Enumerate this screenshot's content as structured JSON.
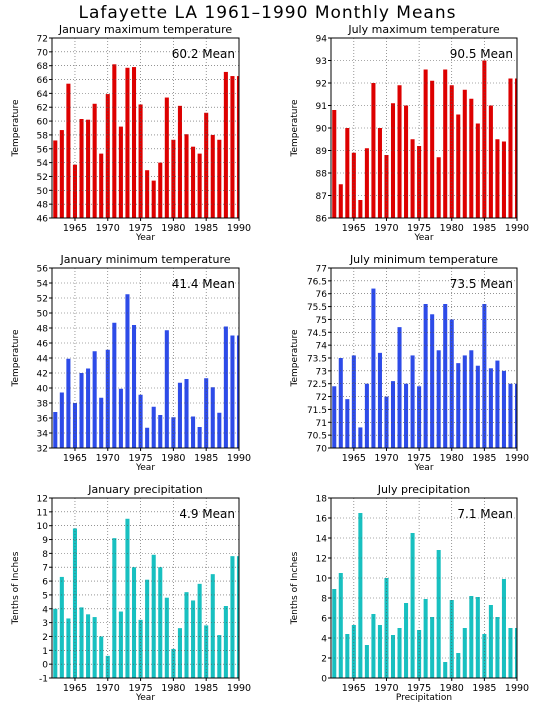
{
  "page": {
    "title": "Lafayette LA   1961–1990 Monthly Means"
  },
  "chart_data": [
    {
      "type": "bar",
      "title": "January maximum temperature",
      "mean_label": "60.2  Mean",
      "xlabel": "Year",
      "ylabel": "Temperature",
      "ylim": [
        46,
        72
      ],
      "ytick_step": 2,
      "xlim": [
        1961.5,
        1990
      ],
      "xticks": [
        1965,
        1970,
        1975,
        1980,
        1985,
        1990
      ],
      "grid": true,
      "color": "#dd0000",
      "x": [
        1962,
        1963,
        1964,
        1965,
        1966,
        1967,
        1968,
        1969,
        1970,
        1971,
        1972,
        1973,
        1974,
        1975,
        1976,
        1977,
        1978,
        1979,
        1980,
        1981,
        1982,
        1983,
        1984,
        1985,
        1986,
        1987,
        1988,
        1989,
        1990
      ],
      "values": [
        57.2,
        58.7,
        65.4,
        53.7,
        60.3,
        60.2,
        62.5,
        55.3,
        63.9,
        68.2,
        59.2,
        67.7,
        67.8,
        62.4,
        52.9,
        51.4,
        54.0,
        63.4,
        57.3,
        62.2,
        58.1,
        56.3,
        55.3,
        61.2,
        58.0,
        57.3,
        67.1,
        66.5,
        66.5
      ]
    },
    {
      "type": "bar",
      "title": "July maximum temperature",
      "mean_label": "90.5  Mean",
      "xlabel": "Year",
      "ylabel": "Temperature",
      "ylim": [
        86,
        94
      ],
      "ytick_step": 1,
      "xlim": [
        1961.5,
        1990
      ],
      "xticks": [
        1965,
        1970,
        1975,
        1980,
        1985,
        1990
      ],
      "grid": true,
      "color": "#dd0000",
      "x": [
        1962,
        1963,
        1964,
        1965,
        1966,
        1967,
        1968,
        1969,
        1970,
        1971,
        1972,
        1973,
        1974,
        1975,
        1976,
        1977,
        1978,
        1979,
        1980,
        1981,
        1982,
        1983,
        1984,
        1985,
        1986,
        1987,
        1988,
        1989,
        1990
      ],
      "values": [
        90.8,
        87.5,
        90.0,
        88.9,
        86.8,
        89.1,
        92.0,
        90.0,
        88.8,
        91.1,
        91.9,
        91.0,
        89.5,
        89.2,
        92.6,
        92.1,
        88.7,
        92.6,
        91.9,
        90.6,
        91.7,
        91.3,
        90.2,
        93.0,
        91.0,
        89.5,
        89.4,
        92.2,
        92.2
      ]
    },
    {
      "type": "bar",
      "title": "January minimum temperature",
      "mean_label": "41.4  Mean",
      "xlabel": "Year",
      "ylabel": "Temperature",
      "ylim": [
        32,
        56
      ],
      "ytick_step": 2,
      "xlim": [
        1961.5,
        1990
      ],
      "xticks": [
        1965,
        1970,
        1975,
        1980,
        1985,
        1990
      ],
      "grid": true,
      "color": "#2d4be8",
      "x": [
        1962,
        1963,
        1964,
        1965,
        1966,
        1967,
        1968,
        1969,
        1970,
        1971,
        1972,
        1973,
        1974,
        1975,
        1976,
        1977,
        1978,
        1979,
        1980,
        1981,
        1982,
        1983,
        1984,
        1985,
        1986,
        1987,
        1988,
        1989,
        1990
      ],
      "values": [
        36.8,
        39.4,
        43.9,
        38.0,
        42.0,
        42.6,
        44.9,
        38.7,
        45.1,
        48.7,
        39.9,
        52.5,
        48.4,
        39.1,
        34.7,
        37.5,
        36.4,
        47.7,
        36.1,
        40.7,
        41.2,
        36.2,
        34.8,
        41.3,
        40.1,
        36.7,
        48.2,
        47.0,
        47.0
      ]
    },
    {
      "type": "bar",
      "title": "July minimum temperature",
      "mean_label": "73.5  Mean",
      "xlabel": "Year",
      "ylabel": "Temperature",
      "ylim": [
        70,
        77
      ],
      "ytick_step": 0.5,
      "xlim": [
        1961.5,
        1990
      ],
      "xticks": [
        1965,
        1970,
        1975,
        1980,
        1985,
        1990
      ],
      "grid": true,
      "color": "#2d4be8",
      "x": [
        1962,
        1963,
        1964,
        1965,
        1966,
        1967,
        1968,
        1969,
        1970,
        1971,
        1972,
        1973,
        1974,
        1975,
        1976,
        1977,
        1978,
        1979,
        1980,
        1981,
        1982,
        1983,
        1984,
        1985,
        1986,
        1987,
        1988,
        1989,
        1990
      ],
      "values": [
        72.4,
        73.5,
        71.9,
        73.6,
        70.8,
        72.5,
        76.2,
        73.7,
        72.0,
        72.6,
        74.7,
        72.5,
        73.6,
        72.4,
        75.6,
        75.2,
        73.8,
        75.6,
        75.0,
        73.3,
        73.6,
        73.8,
        73.2,
        75.6,
        73.1,
        73.4,
        73.0,
        72.5,
        72.5
      ]
    },
    {
      "type": "bar",
      "title": "January precipitation",
      "mean_label": "4.9  Mean",
      "xlabel": "Year",
      "ylabel": "Tenths of Inches",
      "ylim": [
        -1,
        12
      ],
      "ytick_step": 1,
      "xlim": [
        1961.5,
        1990
      ],
      "xticks": [
        1965,
        1970,
        1975,
        1980,
        1985,
        1990
      ],
      "grid": true,
      "color": "#18c0c0",
      "x": [
        1962,
        1963,
        1964,
        1965,
        1966,
        1967,
        1968,
        1969,
        1970,
        1971,
        1972,
        1973,
        1974,
        1975,
        1976,
        1977,
        1978,
        1979,
        1980,
        1981,
        1982,
        1983,
        1984,
        1985,
        1986,
        1987,
        1988,
        1989,
        1990
      ],
      "values": [
        4.0,
        6.3,
        3.3,
        9.8,
        4.1,
        3.6,
        3.4,
        2.0,
        0.6,
        9.1,
        3.8,
        10.5,
        7.0,
        3.2,
        6.1,
        7.9,
        7.0,
        4.8,
        1.1,
        2.6,
        5.2,
        4.6,
        5.8,
        2.8,
        6.5,
        2.1,
        4.2,
        7.8,
        7.8
      ]
    },
    {
      "type": "bar",
      "title": "July precipitation",
      "mean_label": "7.1  Mean",
      "xlabel": "Precipitation",
      "ylabel": "Tenths of Inches",
      "ylim": [
        0,
        18
      ],
      "ytick_step": 2,
      "xlim": [
        1961.5,
        1990
      ],
      "xticks": [
        1965,
        1970,
        1975,
        1980,
        1985,
        1990
      ],
      "grid": true,
      "color": "#18c0c0",
      "x": [
        1962,
        1963,
        1964,
        1965,
        1966,
        1967,
        1968,
        1969,
        1970,
        1971,
        1972,
        1973,
        1974,
        1975,
        1976,
        1977,
        1978,
        1979,
        1980,
        1981,
        1982,
        1983,
        1984,
        1985,
        1986,
        1987,
        1988,
        1989,
        1990
      ],
      "values": [
        8.9,
        10.5,
        4.4,
        5.3,
        16.5,
        3.3,
        6.4,
        5.3,
        10.0,
        4.3,
        5.0,
        7.5,
        14.5,
        4.8,
        7.9,
        6.1,
        12.8,
        1.6,
        7.8,
        2.5,
        5.0,
        8.2,
        8.1,
        4.4,
        7.3,
        6.1,
        9.9,
        5.0,
        5.0
      ]
    }
  ]
}
